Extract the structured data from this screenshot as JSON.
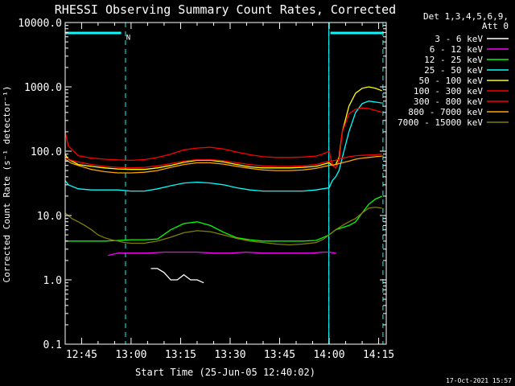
{
  "title": "RHESSI Observing Summary Count Rates, Corrected",
  "stamp": "17-Oct-2021 15:57",
  "chart_data": {
    "type": "line",
    "title": "RHESSI Observing Summary Count Rates, Corrected",
    "xlabel": "Start Time (25-Jun-05 12:40:02)",
    "ylabel": "Corrected Count Rate (s⁻¹ detector⁻¹)",
    "ylog": true,
    "xlim": [
      40.03,
      137.3
    ],
    "ylim": [
      0.1,
      10000
    ],
    "xticks": [
      {
        "t": 45,
        "label": "12:45"
      },
      {
        "t": 60,
        "label": "13:00"
      },
      {
        "t": 75,
        "label": "13:15"
      },
      {
        "t": 90,
        "label": "13:30"
      },
      {
        "t": 105,
        "label": "13:45"
      },
      {
        "t": 120,
        "label": "14:00"
      },
      {
        "t": 135,
        "label": "14:15"
      }
    ],
    "yticks": [
      {
        "v": 0.1,
        "label": "0.1"
      },
      {
        "v": 1,
        "label": "1.0"
      },
      {
        "v": 10,
        "label": "10.0"
      },
      {
        "v": 100,
        "label": "100.0"
      },
      {
        "v": 1000,
        "label": "1000.0"
      },
      {
        "v": 10000,
        "label": "10000.0"
      }
    ],
    "legend": {
      "placement": "right",
      "header": [
        "Det 1,3,4,5,6,9,",
        "Att 0"
      ]
    },
    "annotations": [
      {
        "text": "N",
        "t": 58.5,
        "y": 6000
      }
    ],
    "night_bars": [
      [
        40.03,
        57.0
      ],
      [
        120.4,
        136.5
      ]
    ],
    "solid_vlines": [
      40.03,
      119.9
    ],
    "dashed_vlines": [
      58.3,
      119.9,
      136.3
    ],
    "series": [
      {
        "name": "3 - 6 keV",
        "color": "#ffffff",
        "x": [
          66,
          68,
          70,
          72,
          74,
          76,
          78,
          80,
          82
        ],
        "y": [
          1.5,
          1.5,
          1.3,
          1.0,
          1.0,
          1.2,
          1.0,
          1.0,
          0.9
        ]
      },
      {
        "name": "6 - 12 keV",
        "color": "#ff00ff",
        "x": [
          53,
          56,
          60,
          65,
          70,
          75,
          80,
          85,
          90,
          95,
          100,
          105,
          110,
          115,
          118,
          120,
          122
        ],
        "y": [
          2.4,
          2.6,
          2.6,
          2.6,
          2.7,
          2.7,
          2.7,
          2.6,
          2.6,
          2.7,
          2.6,
          2.6,
          2.6,
          2.6,
          2.7,
          2.7,
          2.6
        ]
      },
      {
        "name": "12 - 25 keV",
        "color": "#00ff00",
        "x": [
          40,
          44,
          48,
          52,
          56,
          60,
          64,
          68,
          72,
          76,
          80,
          84,
          88,
          92,
          96,
          100,
          104,
          108,
          112,
          116,
          118,
          120,
          122,
          124,
          126,
          128,
          130,
          132,
          134,
          136
        ],
        "y": [
          4.0,
          4.0,
          4.0,
          4.0,
          4.1,
          4.2,
          4.2,
          4.3,
          6.0,
          7.5,
          8.0,
          7.0,
          5.5,
          4.5,
          4.2,
          4.0,
          4.0,
          4.0,
          4.0,
          4.1,
          4.5,
          5.0,
          6.0,
          6.5,
          7.0,
          8.0,
          11.0,
          15.0,
          18.0,
          20.0
        ]
      },
      {
        "name": "25 - 50 keV",
        "color": "#00ffff",
        "x": [
          40,
          41,
          44,
          48,
          52,
          56,
          60,
          64,
          68,
          72,
          76,
          80,
          84,
          88,
          92,
          96,
          100,
          104,
          108,
          112,
          116,
          118,
          120,
          121,
          122,
          123,
          124,
          126,
          128,
          130,
          132,
          134,
          136
        ],
        "y": [
          35,
          30,
          26,
          25,
          25,
          25,
          24,
          24,
          26,
          29,
          32,
          33,
          32,
          30,
          27,
          25,
          24,
          24,
          24,
          24,
          25,
          26,
          27,
          35,
          40,
          50,
          80,
          200,
          400,
          550,
          600,
          580,
          560
        ]
      },
      {
        "name": "50 - 100 keV",
        "color": "#ffff00",
        "x": [
          40,
          41,
          44,
          48,
          52,
          56,
          60,
          64,
          68,
          72,
          76,
          80,
          84,
          88,
          92,
          96,
          100,
          104,
          108,
          112,
          116,
          118,
          120,
          121,
          122,
          123,
          124,
          126,
          128,
          130,
          132,
          134,
          136
        ],
        "y": [
          90,
          75,
          62,
          58,
          55,
          53,
          52,
          52,
          55,
          60,
          67,
          72,
          72,
          68,
          62,
          57,
          55,
          55,
          55,
          56,
          58,
          62,
          66,
          60,
          62,
          80,
          200,
          500,
          800,
          950,
          1000,
          950,
          870
        ]
      },
      {
        "name": "100 - 300 keV",
        "color": "#ff0000",
        "x": [
          40,
          41,
          44,
          48,
          52,
          56,
          60,
          64,
          68,
          72,
          76,
          80,
          84,
          88,
          92,
          96,
          100,
          104,
          108,
          112,
          116,
          118,
          120,
          121,
          122,
          123,
          124,
          126,
          128,
          130,
          132,
          134,
          136
        ],
        "y": [
          200,
          120,
          85,
          78,
          75,
          73,
          72,
          74,
          80,
          90,
          105,
          112,
          115,
          108,
          97,
          88,
          82,
          80,
          80,
          81,
          84,
          90,
          100,
          60,
          55,
          70,
          200,
          380,
          450,
          470,
          460,
          430,
          400
        ]
      },
      {
        "name": "300 - 800 keV",
        "color": "#ff0000",
        "x": [
          40,
          42,
          44,
          48,
          52,
          56,
          60,
          64,
          68,
          72,
          76,
          80,
          84,
          88,
          92,
          96,
          100,
          104,
          108,
          112,
          116,
          118,
          120,
          122,
          124,
          126,
          128,
          130,
          132,
          134,
          136
        ],
        "y": [
          80,
          72,
          68,
          62,
          58,
          56,
          55,
          56,
          59,
          64,
          70,
          74,
          74,
          71,
          66,
          62,
          59,
          58,
          58,
          59,
          62,
          66,
          70,
          72,
          78,
          82,
          85,
          86,
          87,
          88,
          90
        ]
      },
      {
        "name": "800 - 7000 keV",
        "color": "#ffa500",
        "x": [
          40,
          42,
          44,
          48,
          52,
          56,
          60,
          64,
          68,
          72,
          76,
          80,
          84,
          88,
          92,
          96,
          100,
          104,
          108,
          112,
          116,
          118,
          120,
          122,
          124,
          126,
          128,
          130,
          132,
          134,
          136
        ],
        "y": [
          75,
          65,
          60,
          52,
          48,
          46,
          46,
          47,
          50,
          56,
          62,
          66,
          66,
          63,
          58,
          54,
          51,
          50,
          50,
          51,
          54,
          57,
          60,
          62,
          66,
          70,
          75,
          78,
          80,
          82,
          84
        ]
      },
      {
        "name": "7000 - 15000 keV",
        "color": "#808000",
        "x": [
          40,
          42,
          44,
          46,
          48,
          50,
          52,
          54,
          56,
          58,
          60,
          64,
          68,
          72,
          76,
          80,
          84,
          88,
          92,
          96,
          100,
          104,
          108,
          112,
          116,
          118,
          120,
          122,
          124,
          126,
          128,
          130,
          132,
          134,
          136
        ],
        "y": [
          11,
          9,
          8,
          7,
          6,
          5,
          4.5,
          4.2,
          4.0,
          3.8,
          3.7,
          3.7,
          4.0,
          4.6,
          5.4,
          5.8,
          5.6,
          5.0,
          4.4,
          4.0,
          3.8,
          3.6,
          3.5,
          3.6,
          3.8,
          4.2,
          5.0,
          6.0,
          7.0,
          8.0,
          9.0,
          11.0,
          13.0,
          13.5,
          13.0
        ]
      }
    ]
  }
}
